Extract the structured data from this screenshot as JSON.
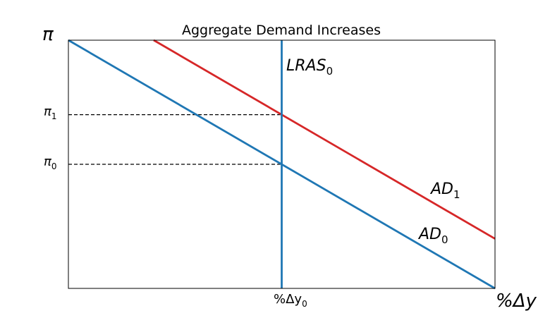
{
  "chart_data": {
    "type": "line",
    "title": "Aggregate Demand Increases",
    "xlabel": "%Δy",
    "ylabel": "π",
    "xlim": [
      0,
      10
    ],
    "ylim": [
      0,
      10
    ],
    "grid": false,
    "series": [
      {
        "name": "AD0",
        "label_base": "AD",
        "label_sub": "0",
        "color": "#1f77b4",
        "x": [
          0,
          10
        ],
        "y": [
          10,
          0
        ]
      },
      {
        "name": "AD1",
        "label_base": "AD",
        "label_sub": "1",
        "color": "#d62728",
        "x": [
          2,
          10
        ],
        "y": [
          10,
          2
        ]
      },
      {
        "name": "LRAS0",
        "label_base": "LRAS",
        "label_sub": "0",
        "color": "#1f77b4",
        "x": [
          5,
          5
        ],
        "y": [
          0,
          10
        ]
      }
    ],
    "annotations": {
      "pi1": {
        "label_base": "π",
        "label_sub": "1",
        "y": 7,
        "x_end": 5
      },
      "pi0": {
        "label_base": "π",
        "label_sub": "0",
        "y": 5,
        "x_end": 5
      },
      "y0": {
        "label_base": "%Δy",
        "label_sub": "0",
        "x": 5
      }
    }
  }
}
